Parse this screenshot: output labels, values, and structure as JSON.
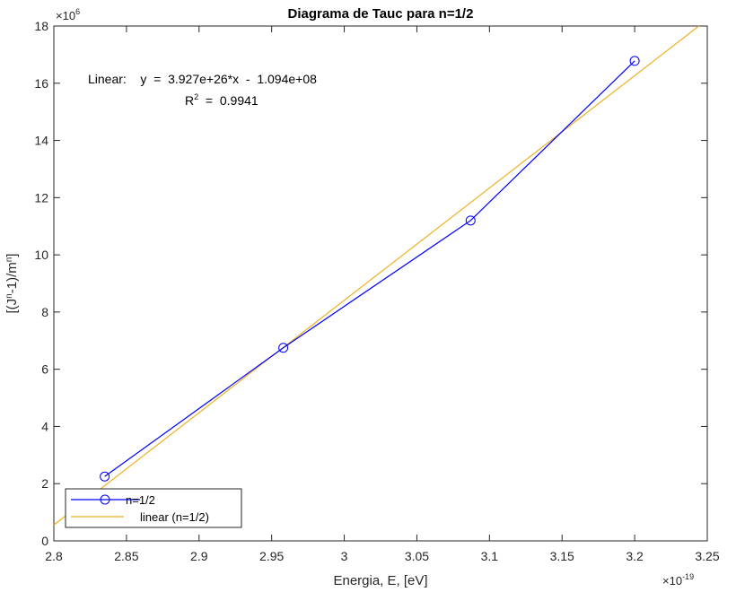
{
  "chart_data": {
    "type": "line",
    "title": "Diagrama de Tauc para n=1/2",
    "xlabel": "Energia, E, [eV]",
    "ylabel": "[(J^n-1)/m^n]",
    "x_multiplier": "×10",
    "x_multiplier_exp": "-19",
    "y_multiplier": "×10",
    "y_multiplier_exp": "6",
    "xlim": [
      2.8e-19,
      3.25e-19
    ],
    "ylim": [
      0,
      18000000
    ],
    "x_ticks": [
      2.8e-19,
      2.85e-19,
      2.9e-19,
      2.95e-19,
      3e-19,
      3.05e-19,
      3.1e-19,
      3.15e-19,
      3.2e-19,
      3.25e-19
    ],
    "x_tick_labels": [
      "2.8",
      "2.85",
      "2.9",
      "2.95",
      "3",
      "3.05",
      "3.1",
      "3.15",
      "3.2",
      "3.25"
    ],
    "y_ticks": [
      0,
      2000000,
      4000000,
      6000000,
      8000000,
      10000000,
      12000000,
      14000000,
      16000000,
      18000000
    ],
    "y_tick_labels": [
      "0",
      "2",
      "4",
      "6",
      "8",
      "10",
      "12",
      "14",
      "16",
      "18"
    ],
    "grid": false,
    "legend_position": "bottom-left",
    "series": [
      {
        "name": "n=1/2",
        "color": "#0000ff",
        "marker": "circle",
        "x": [
          2.835e-19,
          2.958e-19,
          3.087e-19,
          3.2e-19
        ],
        "y": [
          2250000,
          6750000,
          11200000,
          16780000
        ]
      },
      {
        "name": "linear (n=1/2)",
        "color": "#edb120",
        "marker": "none",
        "fit": {
          "slope": 3.927e+26,
          "intercept": -109400000
        },
        "x": [
          2.8e-19,
          3.25e-19
        ]
      }
    ],
    "annotation": {
      "line1": "Linear:    y  =  3.927e+26*x  -  1.094e+08",
      "r2_label": "R",
      "r2_sup": "2",
      "r2_value": "  =  0.9941"
    }
  }
}
